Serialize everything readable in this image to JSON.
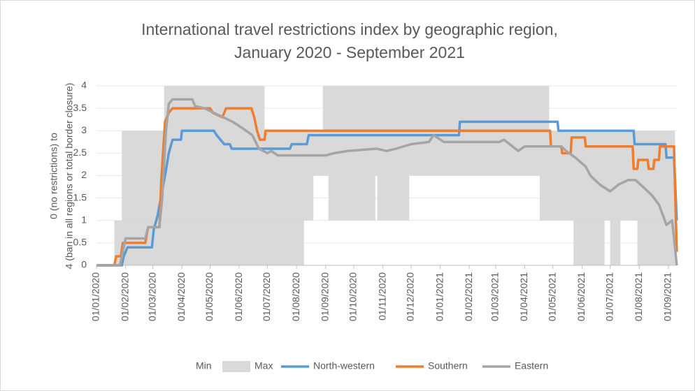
{
  "chart_data": {
    "type": "line",
    "title": [
      "International travel restrictions index by geographic region,",
      "January 2020 - September 2021"
    ],
    "ylabel": [
      "0 (no restrictions) to",
      "4 (ban in all regions or total border closure)"
    ],
    "xlim": [
      "2020-01-01",
      "2021-09-10"
    ],
    "xticks": [
      {
        "value": "2020-01-01",
        "label": "01/01/2020"
      },
      {
        "value": "2020-02-01",
        "label": "01/02/2020"
      },
      {
        "value": "2020-03-01",
        "label": "01/03/2020"
      },
      {
        "value": "2020-04-01",
        "label": "01/04/2020"
      },
      {
        "value": "2020-05-01",
        "label": "01/05/2020"
      },
      {
        "value": "2020-06-01",
        "label": "01/06/2020"
      },
      {
        "value": "2020-07-01",
        "label": "01/07/2020"
      },
      {
        "value": "2020-08-01",
        "label": "01/08/2020"
      },
      {
        "value": "2020-09-01",
        "label": "01/09/2020"
      },
      {
        "value": "2020-10-01",
        "label": "01/10/2020"
      },
      {
        "value": "2020-11-01",
        "label": "01/11/2020"
      },
      {
        "value": "2020-12-01",
        "label": "01/12/2020"
      },
      {
        "value": "2021-01-01",
        "label": "01/01/2021"
      },
      {
        "value": "2021-02-01",
        "label": "01/02/2021"
      },
      {
        "value": "2021-03-01",
        "label": "01/03/2021"
      },
      {
        "value": "2021-04-01",
        "label": "01/04/2021"
      },
      {
        "value": "2021-05-01",
        "label": "01/05/2021"
      },
      {
        "value": "2021-06-01",
        "label": "01/06/2021"
      },
      {
        "value": "2021-07-01",
        "label": "01/07/2021"
      },
      {
        "value": "2021-08-01",
        "label": "01/08/2021"
      },
      {
        "value": "2021-09-01",
        "label": "01/09/2021"
      }
    ],
    "ylim": [
      0,
      4
    ],
    "yticks": [
      0,
      0.5,
      1,
      1.5,
      2,
      2.5,
      3,
      3.5,
      4
    ],
    "grid": true,
    "legend": "bottom",
    "series": [
      {
        "name": "Min",
        "color": "#ffffff",
        "style": "area",
        "x": [
          "2020-01-01",
          "2020-08-09",
          "2020-08-09",
          "2020-08-19",
          "2020-08-19",
          "2020-09-04",
          "2020-09-04",
          "2020-10-24",
          "2020-10-24",
          "2020-10-26",
          "2020-10-26",
          "2020-11-29",
          "2020-11-29",
          "2021-04-17",
          "2021-04-17",
          "2021-05-23",
          "2021-05-23",
          "2021-06-25",
          "2021-06-25",
          "2021-07-01",
          "2021-07-01",
          "2021-07-12",
          "2021-07-12",
          "2021-07-30",
          "2021-07-30",
          "2021-09-10"
        ],
        "values": [
          0,
          0,
          1,
          1,
          2,
          2,
          1,
          1,
          2,
          2,
          1,
          1,
          2,
          2,
          1,
          1,
          0,
          0,
          1,
          1,
          0,
          0,
          1,
          1,
          0,
          0
        ]
      },
      {
        "name": "Max",
        "color": "#d9d9d9",
        "style": "area",
        "x": [
          "2020-01-01",
          "2020-01-20",
          "2020-01-20",
          "2020-01-28",
          "2020-01-28",
          "2020-03-13",
          "2020-03-13",
          "2020-06-28",
          "2020-06-28",
          "2020-08-29",
          "2020-08-29",
          "2021-04-27",
          "2021-04-27",
          "2021-09-08",
          "2021-09-10"
        ],
        "values": [
          0,
          0,
          1,
          1,
          3,
          3,
          4,
          4,
          3,
          3,
          4,
          4,
          3,
          3,
          0
        ]
      },
      {
        "name": "North-western",
        "color": "#5b9bd5",
        "style": "line",
        "x": [
          "2020-01-01",
          "2020-01-28",
          "2020-01-30",
          "2020-02-03",
          "2020-02-29",
          "2020-03-02",
          "2020-03-06",
          "2020-03-14",
          "2020-03-18",
          "2020-03-22",
          "2020-03-31",
          "2020-04-01",
          "2020-05-05",
          "2020-05-08",
          "2020-05-12",
          "2020-05-16",
          "2020-05-22",
          "2020-05-24",
          "2020-07-25",
          "2020-07-27",
          "2020-08-12",
          "2020-08-14",
          "2021-01-21",
          "2021-01-22",
          "2021-05-06",
          "2021-05-07",
          "2021-07-26",
          "2021-07-27",
          "2021-08-29",
          "2021-08-30",
          "2021-09-07",
          "2021-09-10"
        ],
        "values": [
          0,
          0,
          0.2,
          0.4,
          0.4,
          0.8,
          1.1,
          2.0,
          2.5,
          2.8,
          2.8,
          3.0,
          3.0,
          2.9,
          2.8,
          2.7,
          2.7,
          2.6,
          2.6,
          2.7,
          2.7,
          2.9,
          2.9,
          3.2,
          3.2,
          3.0,
          3.0,
          2.7,
          2.7,
          2.4,
          2.4,
          1.0
        ]
      },
      {
        "name": "Southern",
        "color": "#ed7d31",
        "style": "line",
        "x": [
          "2020-01-01",
          "2020-01-20",
          "2020-01-22",
          "2020-01-27",
          "2020-01-29",
          "2020-02-22",
          "2020-02-25",
          "2020-03-08",
          "2020-03-10",
          "2020-03-14",
          "2020-03-18",
          "2020-03-22",
          "2020-05-01",
          "2020-05-04",
          "2020-05-14",
          "2020-05-18",
          "2020-06-14",
          "2020-06-17",
          "2020-06-20",
          "2020-06-23",
          "2020-06-28",
          "2020-06-29",
          "2021-04-28",
          "2021-04-29",
          "2021-05-10",
          "2021-05-11",
          "2021-05-20",
          "2021-05-21",
          "2021-06-04",
          "2021-06-05",
          "2021-07-25",
          "2021-07-26",
          "2021-07-30",
          "2021-07-31",
          "2021-08-10",
          "2021-08-11",
          "2021-08-16",
          "2021-08-17",
          "2021-08-22",
          "2021-08-23",
          "2021-09-07",
          "2021-09-09",
          "2021-09-10"
        ],
        "values": [
          0,
          0,
          0.2,
          0.2,
          0.5,
          0.5,
          0.85,
          0.85,
          1.9,
          3.2,
          3.4,
          3.5,
          3.5,
          3.4,
          3.3,
          3.5,
          3.5,
          3.3,
          3.0,
          2.8,
          2.8,
          3.0,
          3.0,
          2.65,
          2.65,
          2.5,
          2.5,
          2.85,
          2.85,
          2.65,
          2.65,
          2.15,
          2.15,
          2.35,
          2.35,
          2.15,
          2.15,
          2.35,
          2.35,
          2.65,
          2.65,
          1.0,
          0.3
        ]
      },
      {
        "name": "Eastern",
        "color": "#a5a5a5",
        "style": "line",
        "x": [
          "2020-01-01",
          "2020-01-26",
          "2020-01-28",
          "2020-02-01",
          "2020-02-22",
          "2020-02-25",
          "2020-03-08",
          "2020-03-11",
          "2020-03-15",
          "2020-03-18",
          "2020-03-22",
          "2020-04-12",
          "2020-04-15",
          "2020-04-25",
          "2020-05-05",
          "2020-05-15",
          "2020-05-25",
          "2020-06-05",
          "2020-06-15",
          "2020-06-22",
          "2020-07-01",
          "2020-07-05",
          "2020-07-12",
          "2020-09-01",
          "2020-09-10",
          "2020-09-25",
          "2020-10-25",
          "2020-11-05",
          "2020-11-15",
          "2020-12-01",
          "2020-12-20",
          "2020-12-25",
          "2021-01-05",
          "2021-03-05",
          "2021-03-10",
          "2021-03-25",
          "2021-04-01",
          "2021-05-10",
          "2021-05-15",
          "2021-05-25",
          "2021-06-05",
          "2021-06-10",
          "2021-06-20",
          "2021-07-01",
          "2021-07-10",
          "2021-07-20",
          "2021-07-28",
          "2021-08-05",
          "2021-08-15",
          "2021-08-22",
          "2021-08-30",
          "2021-09-05",
          "2021-09-10"
        ],
        "values": [
          0,
          0,
          0.2,
          0.6,
          0.6,
          0.85,
          0.85,
          1.5,
          3.0,
          3.6,
          3.7,
          3.7,
          3.55,
          3.5,
          3.4,
          3.3,
          3.2,
          3.05,
          2.9,
          2.6,
          2.5,
          2.55,
          2.45,
          2.45,
          2.5,
          2.55,
          2.6,
          2.55,
          2.6,
          2.7,
          2.75,
          2.9,
          2.75,
          2.75,
          2.8,
          2.55,
          2.65,
          2.65,
          2.55,
          2.4,
          2.2,
          2.0,
          1.8,
          1.65,
          1.8,
          1.9,
          1.9,
          1.75,
          1.55,
          1.35,
          0.9,
          1.0,
          0
        ]
      }
    ]
  }
}
